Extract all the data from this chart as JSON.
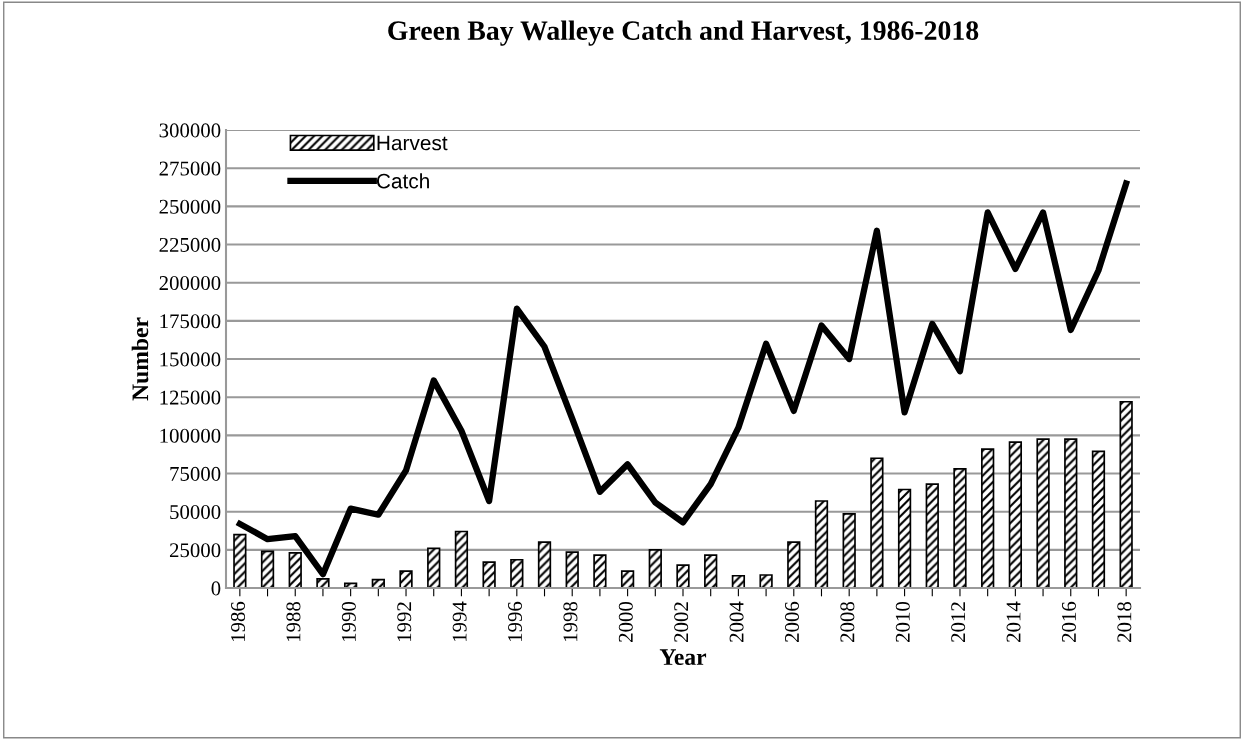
{
  "chart_data": {
    "type": "bar",
    "title": "Green Bay Walleye Catch and Harvest, 1986-2018",
    "xlabel": "Year",
    "ylabel": "Number",
    "categories": [
      "1986",
      null,
      "1988",
      null,
      "1990",
      null,
      "1992",
      null,
      "1994",
      null,
      "1996",
      null,
      "1998",
      null,
      "2000",
      null,
      "2002",
      null,
      "2004",
      null,
      "2006",
      null,
      "2008",
      null,
      "2010",
      null,
      "2012",
      null,
      "2014",
      null,
      "2016",
      null,
      "2018"
    ],
    "series": [
      {
        "name": "Harvest",
        "color": "#000000",
        "values": [
          35000,
          24000,
          23000,
          6000,
          3000,
          5500,
          11000,
          26000,
          37000,
          17000,
          18500,
          30000,
          23500,
          21500,
          11000,
          25000,
          15000,
          21500,
          8000,
          8500,
          30000,
          57000,
          48500,
          85000,
          64500,
          68000,
          78000,
          91000,
          95500,
          97500,
          97500,
          89500,
          122000
        ]
      },
      {
        "name": "Catch",
        "type": "line",
        "color": "#000000",
        "values": [
          42000,
          32000,
          34000,
          9000,
          52000,
          48000,
          77000,
          136000,
          103000,
          57000,
          183000,
          158000,
          111000,
          63000,
          81000,
          56000,
          43000,
          68000,
          105000,
          160000,
          116000,
          172000,
          150000,
          234000,
          115000,
          173000,
          142000,
          246000,
          209000,
          246000,
          169000,
          208000,
          265000
        ]
      }
    ],
    "ylim": [
      0,
      300000
    ],
    "yticks": [
      0,
      25000,
      50000,
      75000,
      100000,
      125000,
      150000,
      175000,
      200000,
      225000,
      250000,
      275000,
      300000
    ],
    "grid": "y",
    "legend": "top left",
    "marker": "none",
    "line_style": "solid"
  }
}
